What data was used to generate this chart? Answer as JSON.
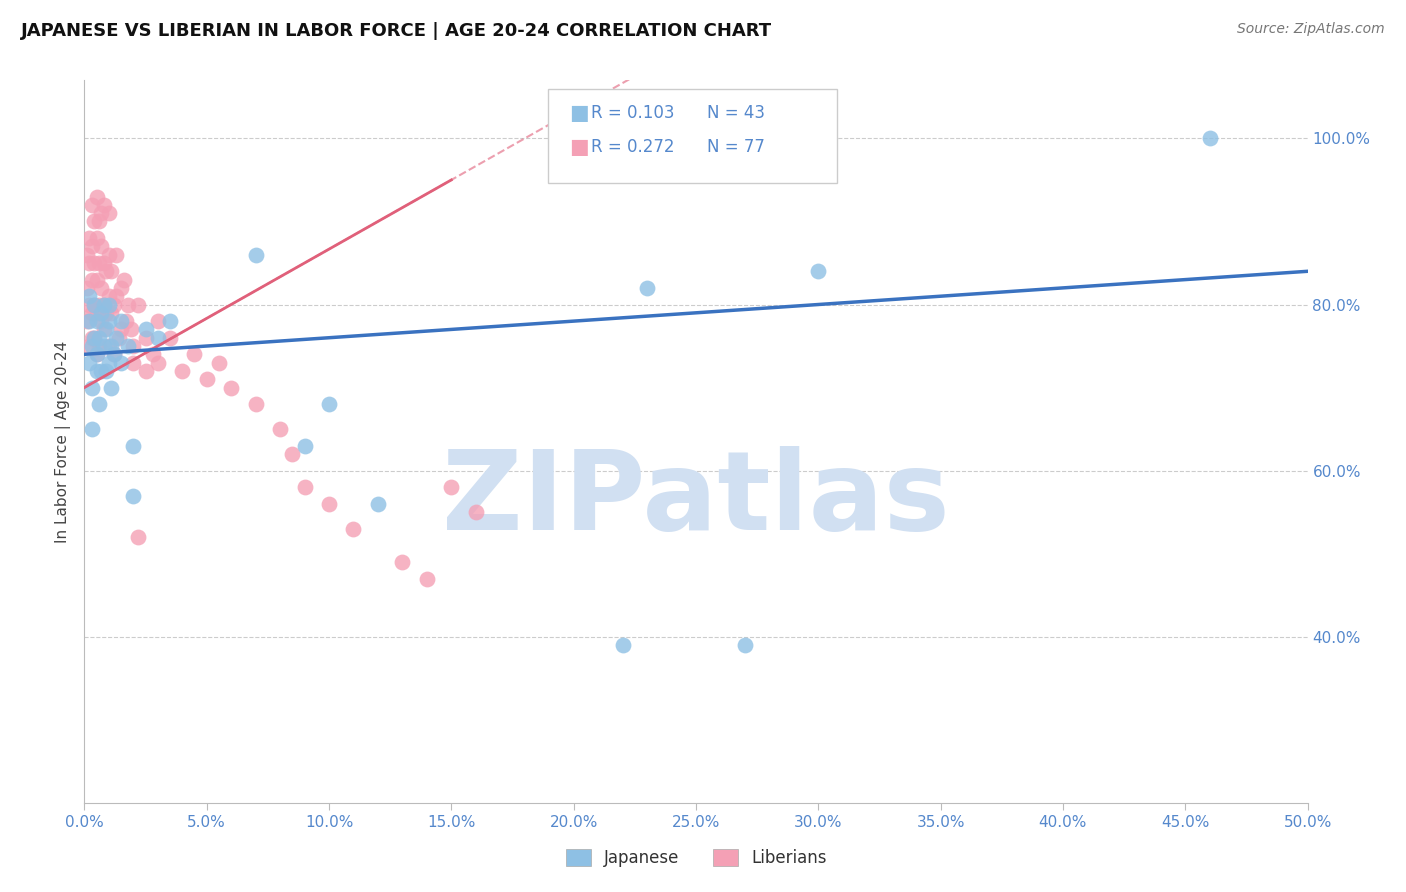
{
  "title": "JAPANESE VS LIBERIAN IN LABOR FORCE | AGE 20-24 CORRELATION CHART",
  "source": "Source: ZipAtlas.com",
  "xlabel_vals": [
    0.0,
    5.0,
    10.0,
    15.0,
    20.0,
    25.0,
    30.0,
    35.0,
    40.0,
    45.0,
    50.0
  ],
  "xlim": [
    0.0,
    50.0
  ],
  "ylim": [
    20.0,
    107.0
  ],
  "ytick_vals": [
    40.0,
    60.0,
    80.0,
    100.0
  ],
  "ytick_labels": [
    "40.0%",
    "60.0%",
    "80.0%",
    "100.0%"
  ],
  "japanese_R": 0.103,
  "japanese_N": 43,
  "liberian_R": 0.272,
  "liberian_N": 77,
  "ylabel": "In Labor Force | Age 20-24",
  "japanese_color": "#8ec0e4",
  "liberian_color": "#f4a0b5",
  "japanese_line_color": "#3a72c0",
  "liberian_line_color": "#e0607a",
  "watermark": "ZIPatlas",
  "watermark_color_r": 0.82,
  "watermark_color_g": 0.88,
  "watermark_color_b": 0.95,
  "japanese_x": [
    0.2,
    0.2,
    0.2,
    0.3,
    0.3,
    0.3,
    0.4,
    0.4,
    0.5,
    0.5,
    0.5,
    0.6,
    0.6,
    0.7,
    0.7,
    0.8,
    0.8,
    0.9,
    0.9,
    1.0,
    1.0,
    1.0,
    1.1,
    1.1,
    1.2,
    1.3,
    1.5,
    1.5,
    1.8,
    2.0,
    2.0,
    2.5,
    3.0,
    3.5,
    7.0,
    9.0,
    10.0,
    12.0,
    22.0,
    23.0,
    27.0,
    30.0,
    46.0
  ],
  "japanese_y": [
    73.0,
    78.0,
    81.0,
    75.0,
    70.0,
    65.0,
    76.0,
    80.0,
    72.0,
    78.0,
    74.0,
    68.0,
    76.0,
    72.0,
    79.0,
    75.0,
    80.0,
    72.0,
    77.0,
    73.0,
    78.0,
    80.0,
    75.0,
    70.0,
    74.0,
    76.0,
    78.0,
    73.0,
    75.0,
    57.0,
    63.0,
    77.0,
    76.0,
    78.0,
    86.0,
    63.0,
    68.0,
    56.0,
    39.0,
    82.0,
    39.0,
    84.0,
    100.0
  ],
  "liberian_x": [
    0.1,
    0.1,
    0.1,
    0.2,
    0.2,
    0.2,
    0.2,
    0.3,
    0.3,
    0.3,
    0.3,
    0.3,
    0.4,
    0.4,
    0.4,
    0.4,
    0.5,
    0.5,
    0.5,
    0.5,
    0.5,
    0.6,
    0.6,
    0.6,
    0.6,
    0.7,
    0.7,
    0.7,
    0.7,
    0.8,
    0.8,
    0.8,
    0.8,
    0.9,
    0.9,
    1.0,
    1.0,
    1.0,
    1.0,
    1.1,
    1.1,
    1.2,
    1.2,
    1.3,
    1.3,
    1.4,
    1.5,
    1.5,
    1.6,
    1.7,
    1.8,
    1.9,
    2.0,
    2.0,
    2.2,
    2.5,
    2.5,
    2.8,
    3.0,
    3.0,
    3.5,
    4.0,
    4.5,
    5.0,
    5.5,
    6.0,
    7.0,
    8.0,
    8.5,
    9.0,
    10.0,
    11.0,
    13.0,
    14.0,
    15.0,
    16.0,
    2.2
  ],
  "liberian_y": [
    78.0,
    82.0,
    86.0,
    80.0,
    85.0,
    88.0,
    75.0,
    83.0,
    87.0,
    79.0,
    92.0,
    76.0,
    80.0,
    85.0,
    90.0,
    76.0,
    83.0,
    88.0,
    79.0,
    93.0,
    74.0,
    80.0,
    85.0,
    90.0,
    75.0,
    82.0,
    87.0,
    78.0,
    91.0,
    80.0,
    85.0,
    77.0,
    92.0,
    79.0,
    84.0,
    81.0,
    86.0,
    75.0,
    91.0,
    79.0,
    84.0,
    80.0,
    74.0,
    81.0,
    86.0,
    76.0,
    82.0,
    77.0,
    83.0,
    78.0,
    80.0,
    77.0,
    75.0,
    73.0,
    80.0,
    76.0,
    72.0,
    74.0,
    78.0,
    73.0,
    76.0,
    72.0,
    74.0,
    71.0,
    73.0,
    70.0,
    68.0,
    65.0,
    62.0,
    58.0,
    56.0,
    53.0,
    49.0,
    47.0,
    58.0,
    55.0,
    52.0
  ]
}
